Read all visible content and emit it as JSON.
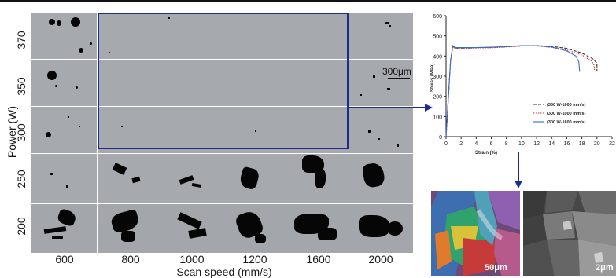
{
  "figure": {
    "y_axis_label": "Power (W)",
    "x_axis_label": "Scan speed (mm/s)",
    "power_levels": [
      "370",
      "350",
      "300",
      "250",
      "200"
    ],
    "scan_speeds": [
      "600",
      "800",
      "1000",
      "1200",
      "1600",
      "2000"
    ],
    "micrograph_scale": "300μm",
    "ebsd_scale": "50μm",
    "sem_scale": "2μm",
    "highlight_color": "#1f2a8e"
  },
  "chart_data": {
    "type": "line",
    "xlabel": "Strain (%)",
    "ylabel": "Stress (MPa)",
    "xlim": [
      0,
      22
    ],
    "ylim": [
      0,
      600
    ],
    "xticks": [
      "0",
      "2",
      "4",
      "6",
      "8",
      "10",
      "12",
      "14",
      "16",
      "18",
      "20",
      "22"
    ],
    "yticks": [
      "0",
      "100",
      "200",
      "300",
      "400",
      "500",
      "600"
    ],
    "legend_position": "bottom-right",
    "series": [
      {
        "name": "(350 W-1600 mm/s)",
        "color": "#333333",
        "dash": "dashed",
        "x": [
          0,
          0.6,
          0.9,
          1.2,
          2,
          4,
          6,
          8,
          10,
          12,
          14,
          16,
          18,
          19.5,
          20.0,
          20.0
        ],
        "y": [
          0,
          380,
          448,
          440,
          440,
          442,
          443,
          446,
          450,
          452,
          448,
          438,
          415,
          385,
          365,
          325
        ]
      },
      {
        "name": "(300 W-1000 mm/s)",
        "color": "#c0392b",
        "dash": "dotted",
        "x": [
          0,
          0.6,
          0.9,
          1.2,
          2,
          4,
          6,
          8,
          10,
          12,
          14,
          16,
          18,
          19.3,
          19.6,
          19.7
        ],
        "y": [
          0,
          380,
          445,
          437,
          437,
          440,
          441,
          445,
          450,
          450,
          443,
          430,
          405,
          375,
          355,
          325
        ]
      },
      {
        "name": "(300 W-1600 mm/s)",
        "color": "#3a6bc8",
        "dash": "solid",
        "x": [
          0,
          0.6,
          0.9,
          1.2,
          2,
          4,
          6,
          8,
          10,
          12,
          14,
          16,
          17.2,
          17.6,
          17.7
        ],
        "y": [
          0,
          380,
          452,
          442,
          442,
          442,
          444,
          447,
          452,
          451,
          445,
          425,
          400,
          370,
          322
        ]
      }
    ]
  }
}
